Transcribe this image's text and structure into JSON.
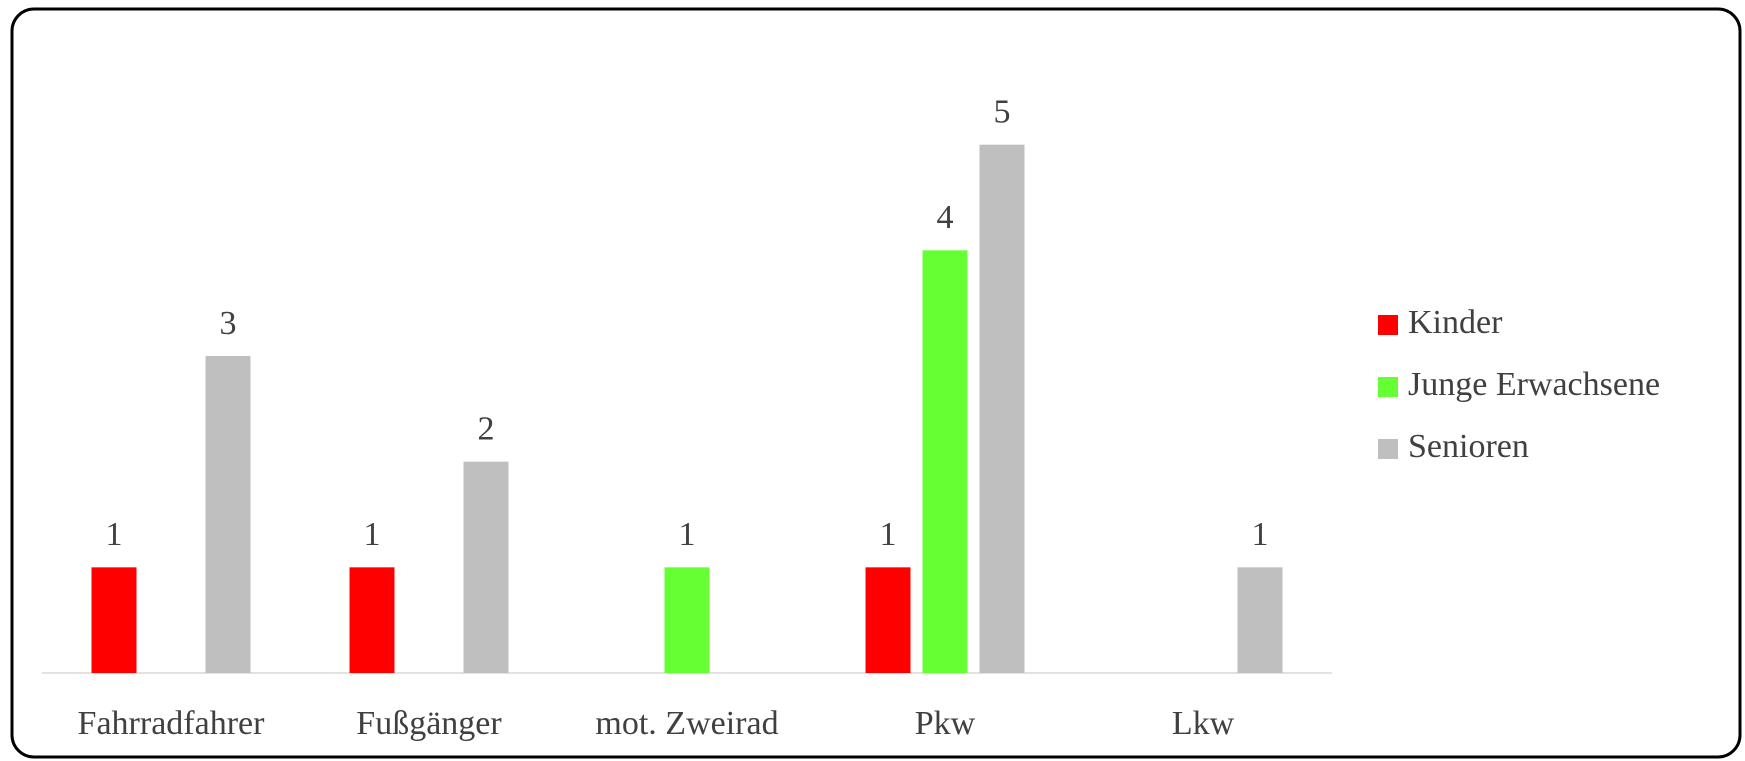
{
  "chart_data": {
    "type": "bar",
    "categories": [
      "Fahrradfahrer",
      "Fußgänger",
      "mot. Zweirad",
      "Pkw",
      "Lkw"
    ],
    "series": [
      {
        "name": "Kinder",
        "color": "#ff0000",
        "values": [
          1,
          1,
          null,
          1,
          null
        ]
      },
      {
        "name": "Junge Erwachsene",
        "color": "#66ff33",
        "values": [
          null,
          null,
          1,
          4,
          null
        ]
      },
      {
        "name": "Senioren",
        "color": "#bfbfbf",
        "values": [
          3,
          2,
          null,
          5,
          1
        ]
      }
    ],
    "ylim": [
      0,
      6
    ],
    "legend": "right",
    "grid": false
  }
}
